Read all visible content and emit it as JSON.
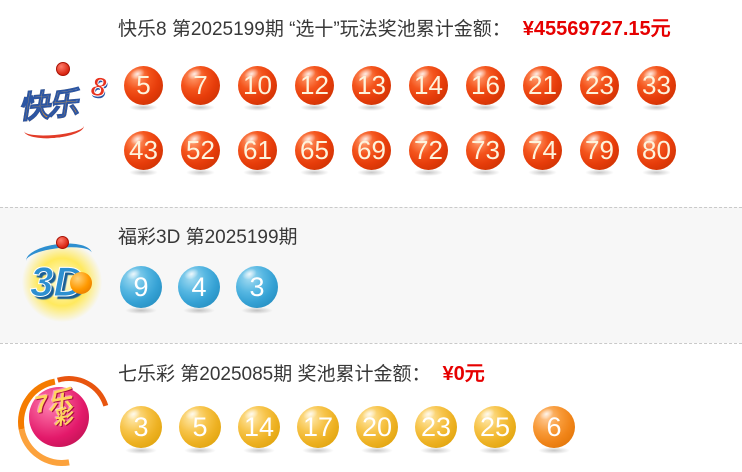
{
  "colors": {
    "amount_red": "#e60000",
    "header_text": "#383838",
    "kl8_ball": "#e63c0a",
    "fc3d_ball": "#35a1d4",
    "qlc_ball": "#edb122",
    "qlc_special_ball": "#f08418",
    "fc3d_section_bg": "#f7f7f7"
  },
  "kl8": {
    "logo": {
      "main": "快乐",
      "eight": "8"
    },
    "title": "快乐8 第2025199期 “选十”玩法奖池累计金额：",
    "amount": "¥45569727.15元",
    "row1": [
      "5",
      "7",
      "10",
      "12",
      "13",
      "14",
      "16",
      "21",
      "23",
      "33"
    ],
    "row2": [
      "43",
      "52",
      "61",
      "65",
      "69",
      "72",
      "73",
      "74",
      "79",
      "80"
    ]
  },
  "fc3d": {
    "logo": {
      "text": "3D"
    },
    "title": "福彩3D 第2025199期",
    "balls": [
      "9",
      "4",
      "3"
    ]
  },
  "qlc": {
    "logo": {
      "line1": "7乐",
      "line2": "彩"
    },
    "title": "七乐彩 第2025085期 奖池累计金额：",
    "amount": "¥0元",
    "balls": [
      "3",
      "5",
      "14",
      "17",
      "20",
      "23",
      "25"
    ],
    "special": "6"
  }
}
